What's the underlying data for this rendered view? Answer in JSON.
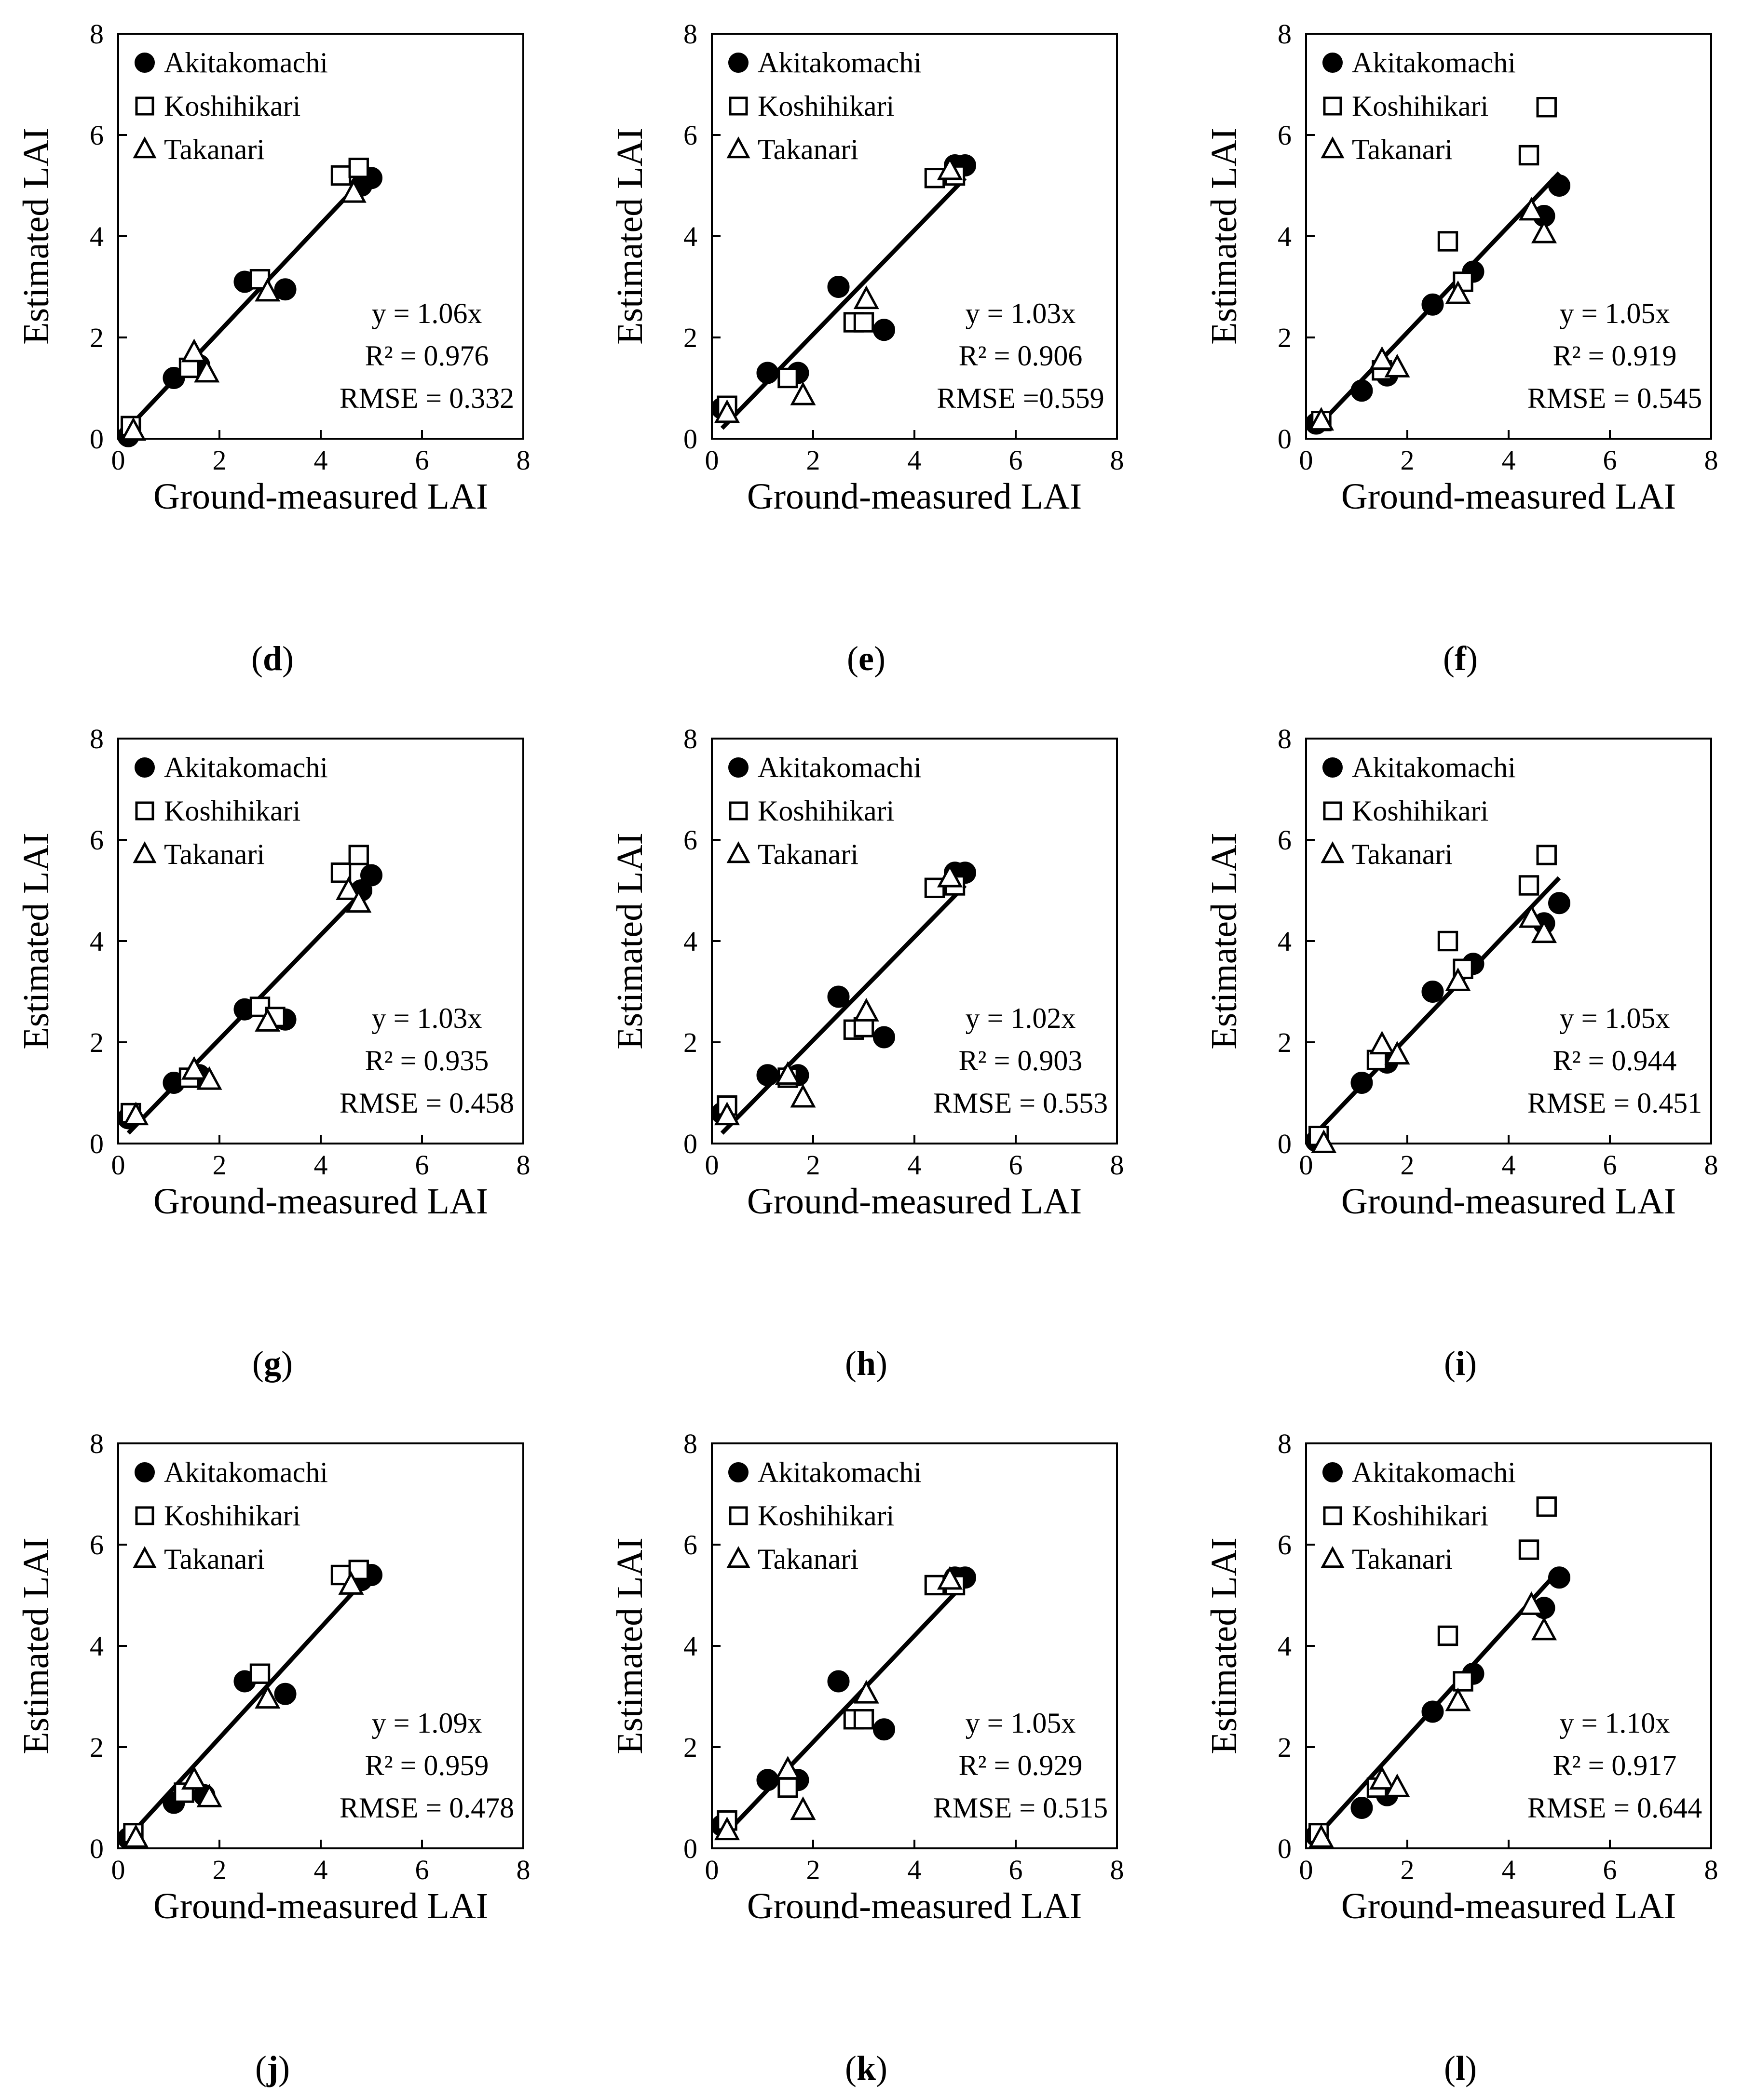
{
  "figure": {
    "colors": {
      "ink": "#000000",
      "background": "#ffffff",
      "open_marker_fill": "#ffffff"
    },
    "legend_entries": [
      {
        "name": "Akitakomachi",
        "marker": "filled-circle"
      },
      {
        "name": "Koshihikari",
        "marker": "open-square"
      },
      {
        "name": "Takanari",
        "marker": "open-triangle"
      }
    ],
    "x_axis_label": "Ground-measured LAI",
    "y_axis_label": "Estimated LAI",
    "tick_labels": [
      "0",
      "2",
      "4",
      "6",
      "8"
    ]
  },
  "chart_data": [
    {
      "panel": "d",
      "type": "scatter",
      "xlabel": "Ground-measured LAI",
      "ylabel": "Estimated LAI",
      "xlim": [
        0,
        8
      ],
      "ylim": [
        0,
        8
      ],
      "fit": {
        "slope": 1.06
      },
      "annotations": [
        "y = 1.06x",
        "R² = 0.976",
        "RMSE = 0.332"
      ],
      "series": [
        {
          "name": "Akitakomachi",
          "marker": "filled-circle",
          "points": [
            [
              0.2,
              0.05
            ],
            [
              1.1,
              1.2
            ],
            [
              1.6,
              1.45
            ],
            [
              2.5,
              3.1
            ],
            [
              3.3,
              2.95
            ],
            [
              4.8,
              5.0
            ],
            [
              5.0,
              5.15
            ]
          ]
        },
        {
          "name": "Koshihikari",
          "marker": "open-square",
          "points": [
            [
              0.25,
              0.25
            ],
            [
              1.4,
              1.4
            ],
            [
              2.8,
              3.15
            ],
            [
              4.4,
              5.2
            ],
            [
              4.75,
              5.35
            ]
          ]
        },
        {
          "name": "Takanari",
          "marker": "open-triangle",
          "points": [
            [
              0.3,
              0.15
            ],
            [
              1.5,
              1.7
            ],
            [
              1.75,
              1.3
            ],
            [
              2.95,
              2.9
            ],
            [
              4.65,
              4.85
            ]
          ]
        }
      ]
    },
    {
      "panel": "e",
      "type": "scatter",
      "xlabel": "Ground-measured LAI",
      "ylabel": "Estimated LAI",
      "xlim": [
        0,
        8
      ],
      "ylim": [
        0,
        8
      ],
      "fit": {
        "slope": 1.03
      },
      "annotations": [
        "y = 1.03x",
        "R² = 0.906",
        "RMSE =0.559"
      ],
      "series": [
        {
          "name": "Akitakomachi",
          "marker": "filled-circle",
          "points": [
            [
              0.2,
              0.6
            ],
            [
              1.1,
              1.3
            ],
            [
              1.7,
              1.3
            ],
            [
              2.5,
              3.0
            ],
            [
              3.4,
              2.15
            ],
            [
              4.8,
              5.4
            ],
            [
              5.0,
              5.4
            ]
          ]
        },
        {
          "name": "Koshihikari",
          "marker": "open-square",
          "points": [
            [
              0.3,
              0.65
            ],
            [
              1.5,
              1.2
            ],
            [
              2.8,
              2.3
            ],
            [
              3.0,
              2.3
            ],
            [
              4.4,
              5.15
            ],
            [
              4.8,
              5.2
            ]
          ]
        },
        {
          "name": "Takanari",
          "marker": "open-triangle",
          "points": [
            [
              0.3,
              0.5
            ],
            [
              1.8,
              0.85
            ],
            [
              3.05,
              2.75
            ],
            [
              4.7,
              5.3
            ]
          ]
        }
      ]
    },
    {
      "panel": "f",
      "type": "scatter",
      "xlabel": "Ground-measured LAI",
      "ylabel": "Estimated LAI",
      "xlim": [
        0,
        8
      ],
      "ylim": [
        0,
        8
      ],
      "fit": {
        "slope": 1.05
      },
      "annotations": [
        "y = 1.05x",
        "R² = 0.919",
        "RMSE = 0.545"
      ],
      "series": [
        {
          "name": "Akitakomachi",
          "marker": "filled-circle",
          "points": [
            [
              0.2,
              0.3
            ],
            [
              1.1,
              0.95
            ],
            [
              1.6,
              1.25
            ],
            [
              2.5,
              2.65
            ],
            [
              3.3,
              3.3
            ],
            [
              4.7,
              4.4
            ],
            [
              5.0,
              5.0
            ]
          ]
        },
        {
          "name": "Koshihikari",
          "marker": "open-square",
          "points": [
            [
              0.3,
              0.35
            ],
            [
              1.5,
              1.35
            ],
            [
              2.8,
              3.9
            ],
            [
              3.1,
              3.1
            ],
            [
              4.4,
              5.6
            ],
            [
              4.75,
              6.55
            ]
          ]
        },
        {
          "name": "Takanari",
          "marker": "open-triangle",
          "points": [
            [
              0.3,
              0.35
            ],
            [
              1.5,
              1.55
            ],
            [
              1.8,
              1.4
            ],
            [
              3.0,
              2.85
            ],
            [
              4.45,
              4.5
            ],
            [
              4.7,
              4.05
            ]
          ]
        }
      ]
    },
    {
      "panel": "g",
      "type": "scatter",
      "xlabel": "Ground-measured LAI",
      "ylabel": "Estimated LAI",
      "xlim": [
        0,
        8
      ],
      "ylim": [
        0,
        8
      ],
      "fit": {
        "slope": 1.03
      },
      "annotations": [
        "y = 1.03x",
        "R² = 0.935",
        "RMSE = 0.458"
      ],
      "series": [
        {
          "name": "Akitakomachi",
          "marker": "filled-circle",
          "points": [
            [
              0.2,
              0.5
            ],
            [
              1.1,
              1.2
            ],
            [
              1.6,
              1.35
            ],
            [
              2.5,
              2.65
            ],
            [
              3.3,
              2.45
            ],
            [
              4.8,
              5.0
            ],
            [
              5.0,
              5.3
            ]
          ]
        },
        {
          "name": "Koshihikari",
          "marker": "open-square",
          "points": [
            [
              0.25,
              0.6
            ],
            [
              1.4,
              1.3
            ],
            [
              2.8,
              2.7
            ],
            [
              3.1,
              2.5
            ],
            [
              4.4,
              5.35
            ],
            [
              4.75,
              5.7
            ]
          ]
        },
        {
          "name": "Takanari",
          "marker": "open-triangle",
          "points": [
            [
              0.35,
              0.55
            ],
            [
              1.5,
              1.45
            ],
            [
              1.8,
              1.25
            ],
            [
              2.95,
              2.4
            ],
            [
              4.55,
              5.0
            ],
            [
              4.75,
              4.75
            ]
          ]
        }
      ]
    },
    {
      "panel": "h",
      "type": "scatter",
      "xlabel": "Ground-measured LAI",
      "ylabel": "Estimated LAI",
      "xlim": [
        0,
        8
      ],
      "ylim": [
        0,
        8
      ],
      "fit": {
        "slope": 1.02
      },
      "annotations": [
        "y = 1.02x",
        "R² = 0.903",
        "RMSE = 0.553"
      ],
      "series": [
        {
          "name": "Akitakomachi",
          "marker": "filled-circle",
          "points": [
            [
              0.2,
              0.6
            ],
            [
              1.1,
              1.35
            ],
            [
              1.7,
              1.35
            ],
            [
              2.5,
              2.9
            ],
            [
              3.4,
              2.1
            ],
            [
              4.8,
              5.35
            ],
            [
              5.0,
              5.35
            ]
          ]
        },
        {
          "name": "Koshihikari",
          "marker": "open-square",
          "points": [
            [
              0.3,
              0.75
            ],
            [
              1.5,
              1.3
            ],
            [
              2.8,
              2.25
            ],
            [
              3.0,
              2.3
            ],
            [
              4.4,
              5.05
            ],
            [
              4.8,
              5.1
            ]
          ]
        },
        {
          "name": "Takanari",
          "marker": "open-triangle",
          "points": [
            [
              0.3,
              0.55
            ],
            [
              1.5,
              1.35
            ],
            [
              1.8,
              0.9
            ],
            [
              3.05,
              2.6
            ],
            [
              4.7,
              5.25
            ]
          ]
        }
      ]
    },
    {
      "panel": "i",
      "type": "scatter",
      "xlabel": "Ground-measured LAI",
      "ylabel": "Estimated LAI",
      "xlim": [
        0,
        8
      ],
      "ylim": [
        0,
        8
      ],
      "fit": {
        "slope": 1.05
      },
      "annotations": [
        "y = 1.05x",
        "R² = 0.944",
        "RMSE = 0.451"
      ],
      "series": [
        {
          "name": "Akitakomachi",
          "marker": "filled-circle",
          "points": [
            [
              0.2,
              0.05
            ],
            [
              1.1,
              1.2
            ],
            [
              1.6,
              1.6
            ],
            [
              2.5,
              3.0
            ],
            [
              3.3,
              3.55
            ],
            [
              4.7,
              4.35
            ],
            [
              5.0,
              4.75
            ]
          ]
        },
        {
          "name": "Koshihikari",
          "marker": "open-square",
          "points": [
            [
              0.25,
              0.15
            ],
            [
              1.4,
              1.65
            ],
            [
              2.8,
              4.0
            ],
            [
              3.1,
              3.45
            ],
            [
              4.4,
              5.1
            ],
            [
              4.75,
              5.7
            ]
          ]
        },
        {
          "name": "Takanari",
          "marker": "open-triangle",
          "points": [
            [
              0.35,
              0.0
            ],
            [
              1.5,
              1.95
            ],
            [
              1.8,
              1.75
            ],
            [
              3.0,
              3.2
            ],
            [
              4.45,
              4.45
            ],
            [
              4.7,
              4.15
            ]
          ]
        }
      ]
    },
    {
      "panel": "j",
      "type": "scatter",
      "xlabel": "Ground-measured LAI",
      "ylabel": "Estimated LAI",
      "xlim": [
        0,
        8
      ],
      "ylim": [
        0,
        8
      ],
      "fit": {
        "slope": 1.09
      },
      "annotations": [
        "y = 1.09x",
        "R² = 0.959",
        "RMSE = 0.478"
      ],
      "series": [
        {
          "name": "Akitakomachi",
          "marker": "filled-circle",
          "points": [
            [
              0.2,
              0.2
            ],
            [
              1.1,
              0.9
            ],
            [
              1.7,
              1.05
            ],
            [
              2.5,
              3.3
            ],
            [
              3.3,
              3.05
            ],
            [
              4.8,
              5.3
            ],
            [
              5.0,
              5.4
            ]
          ]
        },
        {
          "name": "Koshihikari",
          "marker": "open-square",
          "points": [
            [
              0.3,
              0.3
            ],
            [
              1.3,
              1.1
            ],
            [
              2.8,
              3.45
            ],
            [
              4.4,
              5.4
            ],
            [
              4.75,
              5.5
            ]
          ]
        },
        {
          "name": "Takanari",
          "marker": "open-triangle",
          "points": [
            [
              0.35,
              0.2
            ],
            [
              1.5,
              1.35
            ],
            [
              1.8,
              1.0
            ],
            [
              2.95,
              2.95
            ],
            [
              4.6,
              5.2
            ]
          ]
        }
      ]
    },
    {
      "panel": "k",
      "type": "scatter",
      "xlabel": "Ground-measured LAI",
      "ylabel": "Estimated LAI",
      "xlim": [
        0,
        8
      ],
      "ylim": [
        0,
        8
      ],
      "fit": {
        "slope": 1.05
      },
      "annotations": [
        "y = 1.05x",
        "R² = 0.929",
        "RMSE = 0.515"
      ],
      "series": [
        {
          "name": "Akitakomachi",
          "marker": "filled-circle",
          "points": [
            [
              0.2,
              0.45
            ],
            [
              1.1,
              1.35
            ],
            [
              1.7,
              1.35
            ],
            [
              2.5,
              3.3
            ],
            [
              3.4,
              2.35
            ],
            [
              4.8,
              5.35
            ],
            [
              5.0,
              5.35
            ]
          ]
        },
        {
          "name": "Koshihikari",
          "marker": "open-square",
          "points": [
            [
              0.3,
              0.55
            ],
            [
              1.5,
              1.2
            ],
            [
              2.8,
              2.55
            ],
            [
              3.0,
              2.55
            ],
            [
              4.4,
              5.2
            ],
            [
              4.8,
              5.2
            ]
          ]
        },
        {
          "name": "Takanari",
          "marker": "open-triangle",
          "points": [
            [
              0.3,
              0.35
            ],
            [
              1.5,
              1.55
            ],
            [
              1.8,
              0.75
            ],
            [
              3.05,
              3.05
            ],
            [
              4.7,
              5.3
            ]
          ]
        }
      ]
    },
    {
      "panel": "l",
      "type": "scatter",
      "xlabel": "Ground-measured LAI",
      "ylabel": "Estimated LAI",
      "xlim": [
        0,
        8
      ],
      "ylim": [
        0,
        8
      ],
      "fit": {
        "slope": 1.1
      },
      "annotations": [
        "y = 1.10x",
        "R² = 0.917",
        "RMSE = 0.644"
      ],
      "series": [
        {
          "name": "Akitakomachi",
          "marker": "filled-circle",
          "points": [
            [
              0.2,
              0.25
            ],
            [
              1.1,
              0.8
            ],
            [
              1.6,
              1.05
            ],
            [
              2.5,
              2.7
            ],
            [
              3.3,
              3.45
            ],
            [
              4.7,
              4.75
            ],
            [
              5.0,
              5.35
            ]
          ]
        },
        {
          "name": "Koshihikari",
          "marker": "open-square",
          "points": [
            [
              0.25,
              0.3
            ],
            [
              1.4,
              1.2
            ],
            [
              2.8,
              4.2
            ],
            [
              3.1,
              3.3
            ],
            [
              4.4,
              5.9
            ],
            [
              4.75,
              6.75
            ]
          ]
        },
        {
          "name": "Takanari",
          "marker": "open-triangle",
          "points": [
            [
              0.3,
              0.2
            ],
            [
              1.5,
              1.35
            ],
            [
              1.8,
              1.2
            ],
            [
              3.0,
              2.9
            ],
            [
              4.45,
              4.8
            ],
            [
              4.7,
              4.3
            ]
          ]
        }
      ]
    }
  ]
}
